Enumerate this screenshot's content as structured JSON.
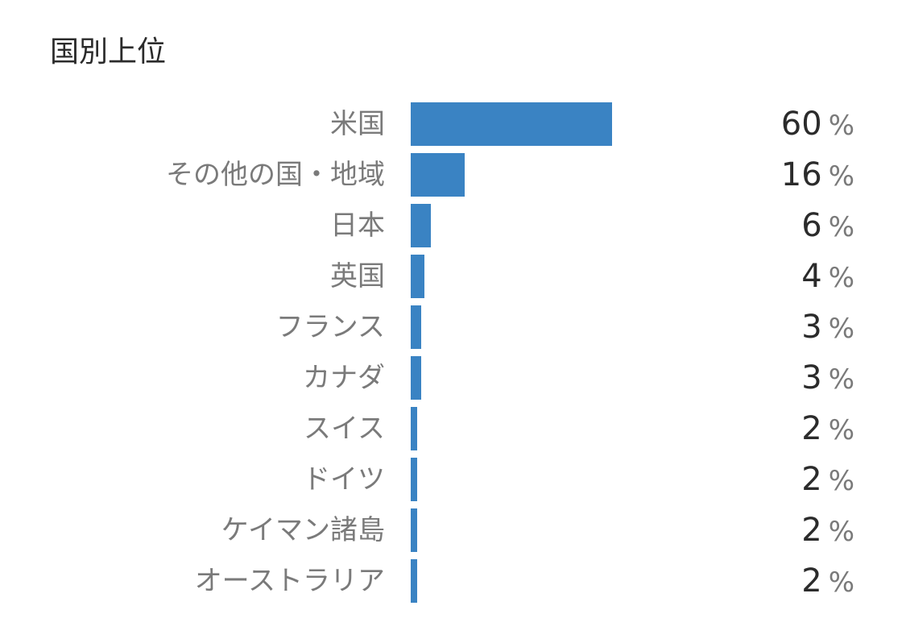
{
  "chart_data": {
    "type": "bar",
    "orientation": "horizontal",
    "title": "国別上位",
    "unit": "%",
    "xmax": 60,
    "categories": [
      "米国",
      "その他の国・地域",
      "日本",
      "英国",
      "フランス",
      "カナダ",
      "スイス",
      "ドイツ",
      "ケイマン諸島",
      "オーストラリア"
    ],
    "values": [
      60,
      16,
      6,
      4,
      3,
      3,
      2,
      2,
      2,
      2
    ],
    "value_labels": [
      "60",
      "16",
      "6",
      "4",
      "3",
      "3",
      "2",
      "2",
      "2",
      "2"
    ],
    "bar_color": "#3a83c3"
  }
}
